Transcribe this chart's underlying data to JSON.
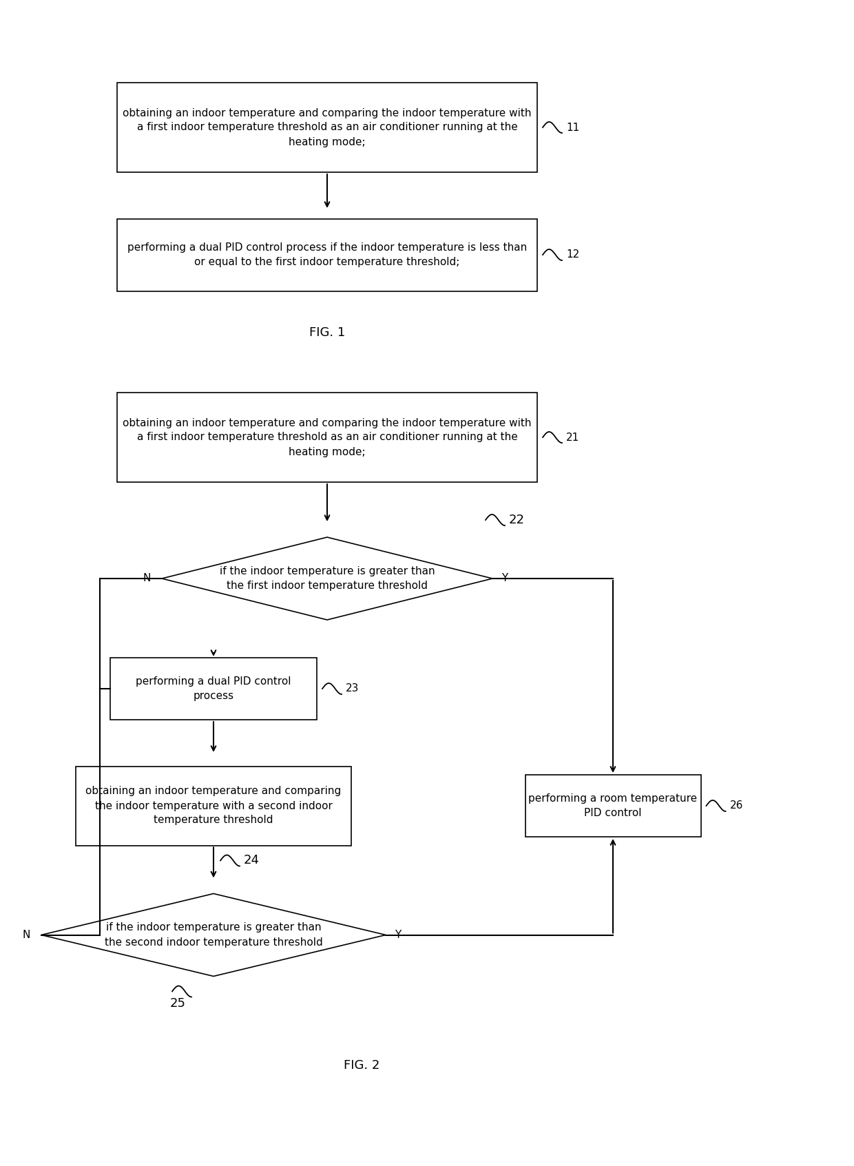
{
  "fig_width": 12.4,
  "fig_height": 16.93,
  "bg_color": "#ffffff",
  "line_color": "#000000",
  "text_color": "#000000",
  "fig1_label": "FIG. 1",
  "fig2_label": "FIG. 2",
  "box11_text": "obtaining an indoor temperature and comparing the indoor temperature with\na first indoor temperature threshold as an air conditioner running at the\nheating mode;",
  "box11_label": "11",
  "box12_text": "performing a dual PID control process if the indoor temperature is less than\nor equal to the first indoor temperature threshold;",
  "box12_label": "12",
  "box21_text": "obtaining an indoor temperature and comparing the indoor temperature with\na first indoor temperature threshold as an air conditioner running at the\nheating mode;",
  "box21_label": "21",
  "diamond22_text": "if the indoor temperature is greater than\nthe first indoor temperature threshold",
  "diamond22_label": "22",
  "box23_text": "performing a dual PID control\nprocess",
  "box23_label": "23",
  "box_obt_text": "obtaining an indoor temperature and comparing\nthe indoor temperature with a second indoor\ntemperature threshold",
  "diamond24_text": "if the indoor temperature is greater than\nthe second indoor temperature threshold",
  "diamond24_label": "24",
  "box26_text": "performing a room temperature\nPID control",
  "box26_label": "26",
  "label25": "25"
}
